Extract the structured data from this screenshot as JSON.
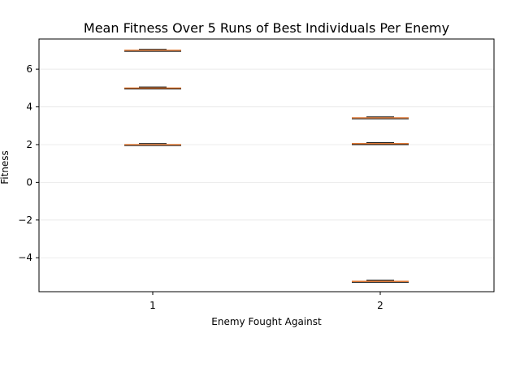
{
  "chart_data": {
    "type": "box",
    "title": "Mean Fitness Over 5 Runs of Best Individuals Per Enemy",
    "xlabel": "Enemy Fought Against",
    "ylabel": "Fitness",
    "categories": [
      "1",
      "2"
    ],
    "ylim": [
      -5.8,
      7.6
    ],
    "yticks": [
      -4,
      -2,
      0,
      2,
      4,
      6
    ],
    "ytick_labels": [
      "−4",
      "−2",
      "0",
      "2",
      "4",
      "6"
    ],
    "grid": "y-major",
    "groups": [
      {
        "category": "1",
        "values": [
          7.0,
          5.0,
          2.0
        ]
      },
      {
        "category": "2",
        "values": [
          3.42,
          2.05,
          -5.25
        ]
      }
    ],
    "colors": {
      "median": "#e07b39",
      "box": "#000000",
      "grid": "#e6e6e6"
    }
  }
}
